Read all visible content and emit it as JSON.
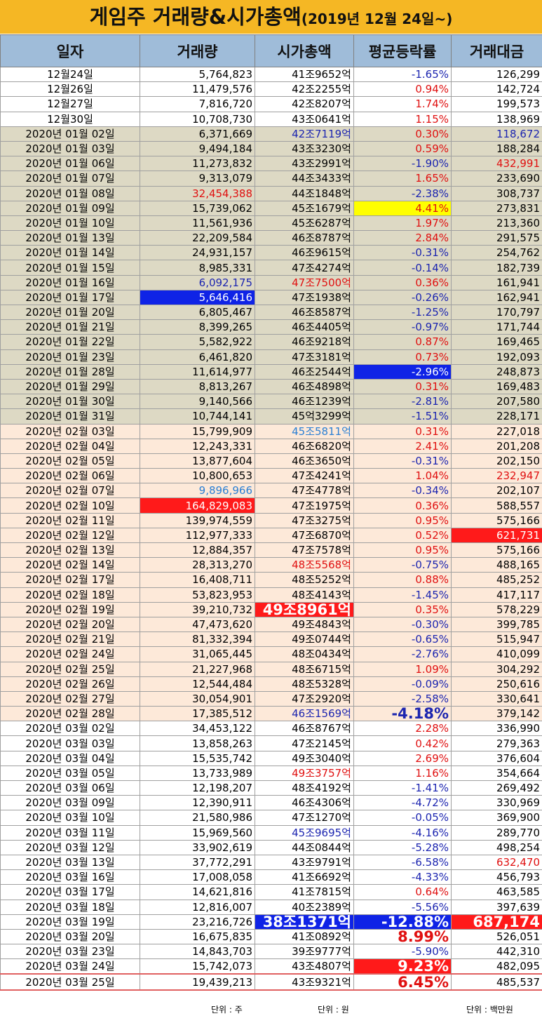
{
  "title": {
    "main": "게임주 거래량&시가총액",
    "sub": "(2019년 12월 24일~)"
  },
  "headers": [
    "일자",
    "거래량",
    "시가총액",
    "평균등락률",
    "거래대금"
  ],
  "units": {
    "volume": "단위 : 주",
    "market_cap": "단위 : 원",
    "trade_value": "단위 : 백만원"
  },
  "colors": {
    "title_bg": "#f5b724",
    "header_bg": "#9fbcd9",
    "jan_bg": "#ddd9c4",
    "feb_bg": "#fde9d9",
    "highlight_red": "#ff1a1a",
    "highlight_blue": "#0f23e6",
    "highlight_yellow": "#ffff00"
  },
  "rows": [
    {
      "date": "12월24일",
      "volume": "5,764,823",
      "cap": "41조9652억",
      "change": "-1.65%",
      "value": "126,299",
      "group": "white"
    },
    {
      "date": "12월26일",
      "volume": "11,479,576",
      "cap": "42조2255억",
      "change": "0.94%",
      "value": "142,724",
      "group": "white"
    },
    {
      "date": "12월27일",
      "volume": "7,816,720",
      "cap": "42조8207억",
      "change": "1.74%",
      "value": "199,573",
      "group": "white"
    },
    {
      "date": "12월30일",
      "volume": "10,708,730",
      "cap": "43조0641억",
      "change": "1.15%",
      "value": "138,969",
      "group": "white"
    },
    {
      "date": "2020년 01월 02일",
      "volume": "6,371,669",
      "cap": "42조7119억",
      "change": "0.30%",
      "value": "118,672",
      "group": "jan",
      "cap_style": "txt-blue",
      "value_style": "txt-blue"
    },
    {
      "date": "2020년 01월 03일",
      "volume": "9,494,184",
      "cap": "43조3230억",
      "change": "0.59%",
      "value": "188,284",
      "group": "jan"
    },
    {
      "date": "2020년 01월 06일",
      "volume": "11,273,832",
      "cap": "43조2991억",
      "change": "-1.90%",
      "value": "432,991",
      "group": "jan",
      "value_style": "txt-red"
    },
    {
      "date": "2020년 01월 07일",
      "volume": "9,313,079",
      "cap": "44조3433억",
      "change": "1.65%",
      "value": "233,690",
      "group": "jan"
    },
    {
      "date": "2020년 01월 08일",
      "volume": "32,454,388",
      "cap": "44조1848억",
      "change": "-2.38%",
      "value": "308,737",
      "group": "jan",
      "volume_style": "txt-red"
    },
    {
      "date": "2020년 01월 09일",
      "volume": "15,739,062",
      "cap": "45조1679억",
      "change": "4.41%",
      "value": "273,831",
      "group": "jan",
      "change_style": "hl-yellow"
    },
    {
      "date": "2020년 01월 10일",
      "volume": "11,561,936",
      "cap": "45조6287억",
      "change": "1.97%",
      "value": "213,360",
      "group": "jan"
    },
    {
      "date": "2020년 01월 13일",
      "volume": "22,209,584",
      "cap": "46조8787억",
      "change": "2.84%",
      "value": "291,575",
      "group": "jan"
    },
    {
      "date": "2020년 01월 14일",
      "volume": "24,931,157",
      "cap": "46조9615억",
      "change": "-0.31%",
      "value": "254,762",
      "group": "jan"
    },
    {
      "date": "2020년 01월 15일",
      "volume": "8,985,331",
      "cap": "47조4274억",
      "change": "-0.14%",
      "value": "182,739",
      "group": "jan"
    },
    {
      "date": "2020년 01월 16일",
      "volume": "6,092,175",
      "cap": "47조7500억",
      "change": "0.36%",
      "value": "161,941",
      "group": "jan",
      "volume_style": "txt-blue",
      "cap_style": "txt-red"
    },
    {
      "date": "2020년 01월 17일",
      "volume": "5,646,416",
      "cap": "47조1938억",
      "change": "-0.26%",
      "value": "162,941",
      "group": "jan",
      "volume_style": "hl-blue"
    },
    {
      "date": "2020년 01월 20일",
      "volume": "6,805,467",
      "cap": "46조8587억",
      "change": "-1.25%",
      "value": "170,797",
      "group": "jan"
    },
    {
      "date": "2020년 01월 21일",
      "volume": "8,399,265",
      "cap": "46조4405억",
      "change": "-0.97%",
      "value": "171,744",
      "group": "jan"
    },
    {
      "date": "2020년 01월 22일",
      "volume": "5,582,922",
      "cap": "46조9218억",
      "change": "0.87%",
      "value": "169,465",
      "group": "jan"
    },
    {
      "date": "2020년 01월 23일",
      "volume": "6,461,820",
      "cap": "47조3181억",
      "change": "0.73%",
      "value": "192,093",
      "group": "jan"
    },
    {
      "date": "2020년 01월 28일",
      "volume": "11,614,977",
      "cap": "46조2544억",
      "change": "-2.96%",
      "value": "248,873",
      "group": "jan",
      "change_style": "hl-blue"
    },
    {
      "date": "2020년 01월 29일",
      "volume": "8,813,267",
      "cap": "46조4898억",
      "change": "0.31%",
      "value": "169,483",
      "group": "jan"
    },
    {
      "date": "2020년 01월 30일",
      "volume": "9,140,566",
      "cap": "46조1239억",
      "change": "-2.81%",
      "value": "207,580",
      "group": "jan"
    },
    {
      "date": "2020년 01월 31일",
      "volume": "10,744,141",
      "cap": "45억3299억",
      "change": "-1.51%",
      "value": "228,171",
      "group": "jan"
    },
    {
      "date": "2020년 02월 03일",
      "volume": "15,799,909",
      "cap": "45조5811억",
      "change": "0.31%",
      "value": "227,018",
      "group": "feb",
      "cap_style": "txt-sky"
    },
    {
      "date": "2020년 02월 04일",
      "volume": "12,243,331",
      "cap": "46조6820억",
      "change": "2.41%",
      "value": "201,208",
      "group": "feb"
    },
    {
      "date": "2020년 02월 05일",
      "volume": "13,877,604",
      "cap": "46조3650억",
      "change": "-0.31%",
      "value": "202,150",
      "group": "feb"
    },
    {
      "date": "2020년 02월 06일",
      "volume": "10,800,653",
      "cap": "47조4241억",
      "change": "1.04%",
      "value": "232,947",
      "group": "feb",
      "value_style": "txt-red"
    },
    {
      "date": "2020년 02월 07일",
      "volume": "9,896,966",
      "cap": "47조4778억",
      "change": "-0.34%",
      "value": "202,107",
      "group": "feb",
      "volume_style": "txt-sky"
    },
    {
      "date": "2020년 02월 10일",
      "volume": "164,829,083",
      "cap": "47조1975억",
      "change": "0.36%",
      "value": "588,557",
      "group": "feb",
      "volume_style": "hl-red"
    },
    {
      "date": "2020년 02월 11일",
      "volume": "139,974,559",
      "cap": "47조3275억",
      "change": "0.95%",
      "value": "575,166",
      "group": "feb"
    },
    {
      "date": "2020년 02월 12일",
      "volume": "112,977,333",
      "cap": "47조6870억",
      "change": "0.52%",
      "value": "621,731",
      "group": "feb",
      "value_style": "hl-red"
    },
    {
      "date": "2020년 02월 13일",
      "volume": "12,884,357",
      "cap": "47조7578억",
      "change": "0.95%",
      "value": "575,166",
      "group": "feb"
    },
    {
      "date": "2020년 02월 14일",
      "volume": "28,313,270",
      "cap": "48조5568억",
      "change": "-0.75%",
      "value": "488,165",
      "group": "feb",
      "cap_style": "txt-red"
    },
    {
      "date": "2020년 02월 17일",
      "volume": "16,408,711",
      "cap": "48조5252억",
      "change": "0.88%",
      "value": "485,252",
      "group": "feb"
    },
    {
      "date": "2020년 02월 18일",
      "volume": "53,823,953",
      "cap": "48조4143억",
      "change": "-1.45%",
      "value": "417,117",
      "group": "feb"
    },
    {
      "date": "2020년 02월 19일",
      "volume": "39,210,732",
      "cap": "49조8961억",
      "change": "0.35%",
      "value": "578,229",
      "group": "feb",
      "cap_style": "hl-red big"
    },
    {
      "date": "2020년 02월 20일",
      "volume": "47,473,620",
      "cap": "49조4843억",
      "change": "-0.30%",
      "value": "399,785",
      "group": "feb"
    },
    {
      "date": "2020년 02월 21일",
      "volume": "81,332,394",
      "cap": "49조0744억",
      "change": "-0.65%",
      "value": "515,947",
      "group": "feb"
    },
    {
      "date": "2020년 02월 24일",
      "volume": "31,065,445",
      "cap": "48조0434억",
      "change": "-2.76%",
      "value": "410,099",
      "group": "feb"
    },
    {
      "date": "2020년 02월 25일",
      "volume": "21,227,968",
      "cap": "48조6715억",
      "change": "1.09%",
      "value": "304,292",
      "group": "feb"
    },
    {
      "date": "2020년 02월 26일",
      "volume": "12,544,484",
      "cap": "48조5328억",
      "change": "-0.09%",
      "value": "250,616",
      "group": "feb"
    },
    {
      "date": "2020년 02월 27일",
      "volume": "30,054,901",
      "cap": "47조2920억",
      "change": "-2.58%",
      "value": "330,641",
      "group": "feb"
    },
    {
      "date": "2020년 02월 28일",
      "volume": "17,385,512",
      "cap": "46조1569억",
      "change": "-4.18%",
      "value": "379,142",
      "group": "feb",
      "cap_style": "txt-blue",
      "change_style": "txt-blue big"
    },
    {
      "date": "2020년 03월 02일",
      "volume": "34,453,122",
      "cap": "46조8767억",
      "change": "2.28%",
      "value": "336,990",
      "group": "mar"
    },
    {
      "date": "2020년 03월 03일",
      "volume": "13,858,263",
      "cap": "47조2145억",
      "change": "0.42%",
      "value": "279,363",
      "group": "mar"
    },
    {
      "date": "2020년 03월 04일",
      "volume": "15,535,742",
      "cap": "49조3040억",
      "change": "2.69%",
      "value": "376,604",
      "group": "mar"
    },
    {
      "date": "2020년 03월 05일",
      "volume": "13,733,989",
      "cap": "49조3757억",
      "change": "1.16%",
      "value": "354,664",
      "group": "mar",
      "cap_style": "txt-red"
    },
    {
      "date": "2020년 03월 06일",
      "volume": "12,198,207",
      "cap": "48조4192억",
      "change": "-1.41%",
      "value": "269,492",
      "group": "mar"
    },
    {
      "date": "2020년 03월 09일",
      "volume": "12,390,911",
      "cap": "46조4306억",
      "change": "-4.72%",
      "value": "330,969",
      "group": "mar"
    },
    {
      "date": "2020년 03월 10일",
      "volume": "21,580,986",
      "cap": "47조1270억",
      "change": "-0.05%",
      "value": "369,900",
      "group": "mar"
    },
    {
      "date": "2020년 03월 11일",
      "volume": "15,969,560",
      "cap": "45조9695억",
      "change": "-4.16%",
      "value": "289,770",
      "group": "mar",
      "cap_style": "txt-blue"
    },
    {
      "date": "2020년 03월 12일",
      "volume": "33,902,619",
      "cap": "44조0844억",
      "change": "-5.28%",
      "value": "498,254",
      "group": "mar"
    },
    {
      "date": "2020년 03월 13일",
      "volume": "37,772,291",
      "cap": "43조9791억",
      "change": "-6.58%",
      "value": "632,470",
      "group": "mar",
      "value_style": "txt-red"
    },
    {
      "date": "2020년 03월 16일",
      "volume": "17,008,058",
      "cap": "41조6692억",
      "change": "-4.33%",
      "value": "456,793",
      "group": "mar"
    },
    {
      "date": "2020년 03월 17일",
      "volume": "14,621,816",
      "cap": "41조7815억",
      "change": "0.64%",
      "value": "463,585",
      "group": "mar"
    },
    {
      "date": "2020년 03월 18일",
      "volume": "12,816,007",
      "cap": "40조2389억",
      "change": "-5.56%",
      "value": "397,639",
      "group": "mar"
    },
    {
      "date": "2020년 03월 19일",
      "volume": "23,216,726",
      "cap": "38조1371억",
      "change": "-12.88%",
      "value": "687,174",
      "group": "mar",
      "cap_style": "hl-blue big",
      "change_style": "hl-blue big",
      "value_style": "hl-red big"
    },
    {
      "date": "2020년 03월 20일",
      "volume": "16,675,835",
      "cap": "41조0892억",
      "change": "8.99%",
      "value": "526,051",
      "group": "mar",
      "change_style": "txt-red big"
    },
    {
      "date": "2020년 03월 23일",
      "volume": "14,843,703",
      "cap": "39조9777억",
      "change": "-5.90%",
      "value": "442,310",
      "group": "mar"
    },
    {
      "date": "2020년 03월 24일",
      "volume": "15,742,073",
      "cap": "43조4807억",
      "change": "9.23%",
      "value": "482,095",
      "group": "mar",
      "change_style": "hl-red big"
    },
    {
      "date": "2020년 03월 25일",
      "volume": "19,439,213",
      "cap": "43조9321억",
      "change": "6.45%",
      "value": "485,537",
      "group": "mar",
      "change_style": "txt-red big",
      "last": true
    }
  ]
}
